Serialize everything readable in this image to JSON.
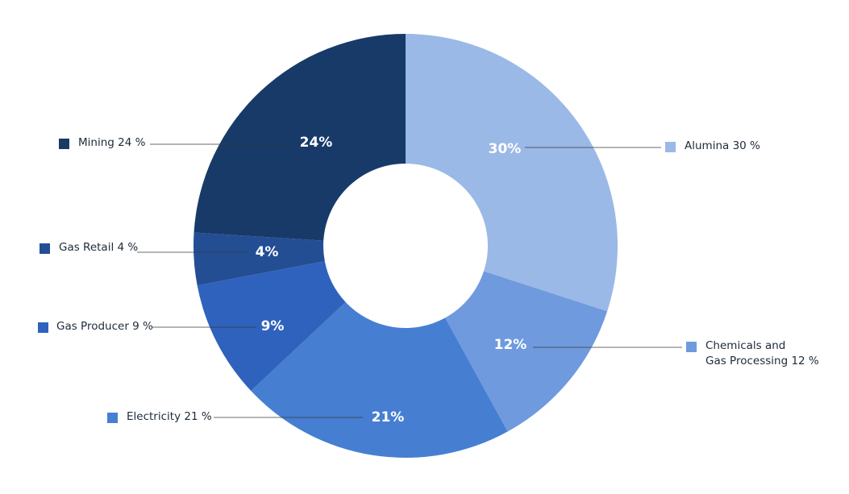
{
  "chart_data": {
    "type": "donut",
    "categories": [
      "Alumina 30 %",
      "Chemicals and\nGas Processing 12 %",
      "Electricity 21 %",
      "Gas Producer 9 %",
      "Gas Retail 4 %",
      "Mining 24 %"
    ],
    "values": [
      30,
      12,
      21,
      9,
      4,
      24
    ],
    "value_labels": [
      "30%",
      "12%",
      "21%",
      "9%",
      "4%",
      "24%"
    ],
    "colors": [
      "#9ab9e6",
      "#6f9ade",
      "#467fd2",
      "#2f62bd",
      "#234e94",
      "#173a69"
    ]
  }
}
